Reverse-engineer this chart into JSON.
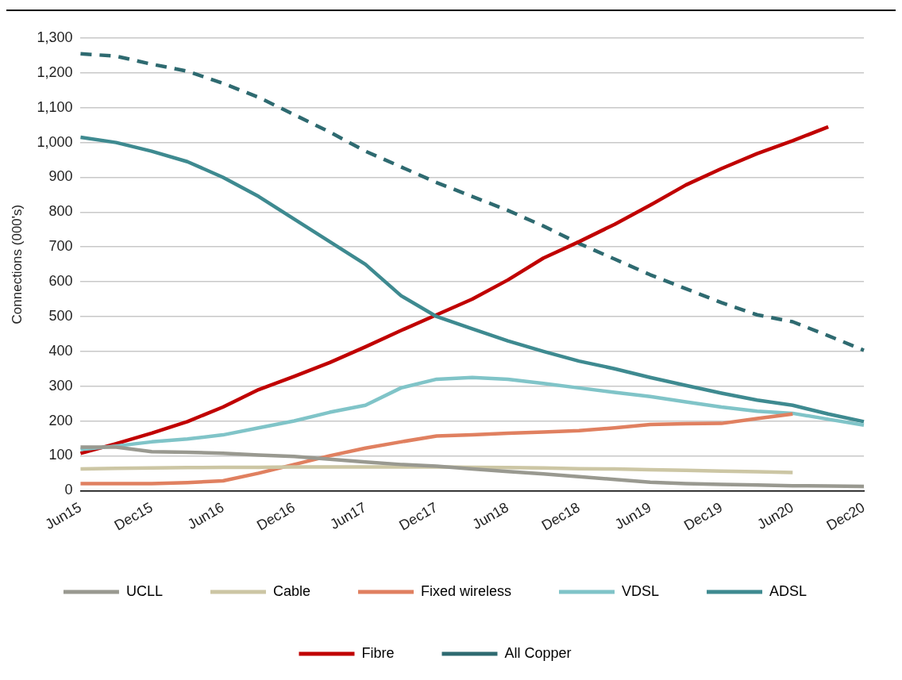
{
  "chart_data": {
    "type": "line",
    "ylabel": "Connections (000's)",
    "categories": [
      "Jun15",
      null,
      "Dec15",
      null,
      "Jun16",
      null,
      "Dec16",
      null,
      "Jun17",
      null,
      "Dec17",
      null,
      "Jun18",
      null,
      "Dec18",
      null,
      "Jun19",
      null,
      "Dec19",
      null,
      "Jun20",
      null,
      "Dec20"
    ],
    "series": [
      {
        "name": "UCLL",
        "color": "#999990",
        "values": [
          125,
          125,
          112,
          110,
          107,
          102,
          98,
          90,
          82,
          75,
          70,
          62,
          55,
          48,
          40,
          32,
          24,
          20,
          18,
          16,
          14,
          13,
          12
        ]
      },
      {
        "name": "Cable",
        "color": "#ccc6a4",
        "values": [
          62,
          64,
          65,
          66,
          67,
          67,
          68,
          68,
          68,
          68,
          68,
          67,
          66,
          65,
          63,
          62,
          60,
          58,
          56,
          54,
          52,
          null,
          null
        ]
      },
      {
        "name": "Fixed wireless",
        "color": "#e08060",
        "values": [
          20,
          20,
          20,
          23,
          28,
          50,
          75,
          100,
          122,
          140,
          157,
          160,
          165,
          168,
          172,
          180,
          190,
          192,
          193,
          207,
          220,
          null,
          null
        ]
      },
      {
        "name": "VDSL",
        "color": "#80c4c8",
        "values": [
          118,
          128,
          140,
          148,
          160,
          180,
          200,
          225,
          245,
          295,
          320,
          325,
          320,
          308,
          295,
          282,
          270,
          255,
          240,
          228,
          222,
          205,
          188
        ]
      },
      {
        "name": "ADSL",
        "color": "#3e8a90",
        "values": [
          1015,
          1000,
          975,
          945,
          900,
          845,
          780,
          715,
          650,
          560,
          500,
          465,
          430,
          400,
          372,
          350,
          325,
          302,
          280,
          260,
          245,
          220,
          198
        ]
      },
      {
        "name": "Fibre",
        "color": "#c00000",
        "values": [
          107,
          135,
          165,
          198,
          240,
          290,
          328,
          368,
          413,
          460,
          505,
          550,
          605,
          668,
          715,
          765,
          820,
          878,
          925,
          968,
          1005,
          1045,
          null
        ]
      },
      {
        "name": "All Copper",
        "color": "#2e6a70",
        "line_style": "dashed",
        "values": [
          1255,
          1248,
          1225,
          1205,
          1170,
          1130,
          1080,
          1030,
          975,
          930,
          885,
          845,
          805,
          760,
          710,
          665,
          620,
          580,
          540,
          505,
          485,
          445,
          403
        ]
      }
    ],
    "ylim": [
      0,
      1300
    ],
    "yticks": [
      0,
      100,
      200,
      300,
      400,
      500,
      600,
      700,
      800,
      900,
      {
        "value": 1000,
        "label": "1,000"
      },
      {
        "value": 1100,
        "label": "1,100"
      },
      {
        "value": 1200,
        "label": "1,200"
      },
      {
        "value": 1300,
        "label": "1,300"
      }
    ],
    "grid": "y",
    "legend": "bottom",
    "marker": "none",
    "line_style": "solid"
  }
}
